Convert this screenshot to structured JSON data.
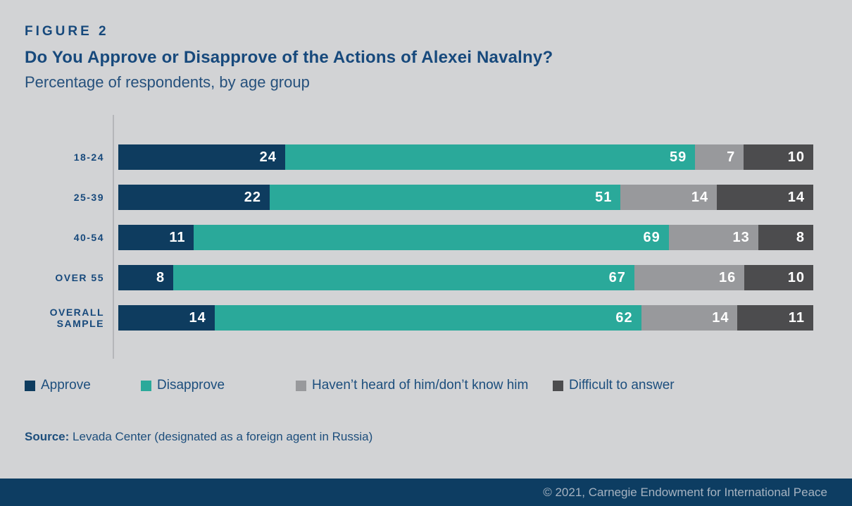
{
  "figure_label": "FIGURE 2",
  "title": "Do You Approve or Disapprove of the Actions of Alexei Navalny?",
  "subtitle": "Percentage of respondents, by age group",
  "source": {
    "label": "Source:",
    "text": "Levada Center (designated as a foreign agent in Russia)"
  },
  "footer_text": "© 2021, Carnegie Endowment for International Peace",
  "colors": {
    "background": "#d2d3d5",
    "approve": "#0e3c5f",
    "disapprove": "#2aa99a",
    "havent_heard": "#98999c",
    "difficult": "#4c4c4e",
    "title_text": "#17497c",
    "footer_bg": "#0d3d62",
    "axis_line": "#b5b6b9"
  },
  "chart_data": {
    "type": "bar",
    "orientation": "horizontal",
    "stacked": true,
    "value_unit": "percent of respondents",
    "title": "Do You Approve or Disapprove of the Actions of Alexei Navalny?",
    "subtitle": "Percentage of respondents, by age group",
    "categories": [
      "18-24",
      "25-39",
      "40-54",
      "OVER 55",
      "OVERALL SAMPLE"
    ],
    "series": [
      {
        "name": "Approve",
        "color": "#0e3c5f",
        "values": [
          24,
          22,
          11,
          8,
          14
        ]
      },
      {
        "name": "Disapprove",
        "color": "#2aa99a",
        "values": [
          59,
          51,
          69,
          67,
          62
        ]
      },
      {
        "name": "Haven’t heard of him/don’t know him",
        "color": "#98999c",
        "values": [
          7,
          14,
          13,
          16,
          14
        ]
      },
      {
        "name": "Difficult to answer",
        "color": "#4c4c4e",
        "values": [
          10,
          14,
          8,
          10,
          11
        ]
      }
    ],
    "legend_position": "bottom",
    "grid": false,
    "xlim": [
      0,
      100
    ]
  }
}
